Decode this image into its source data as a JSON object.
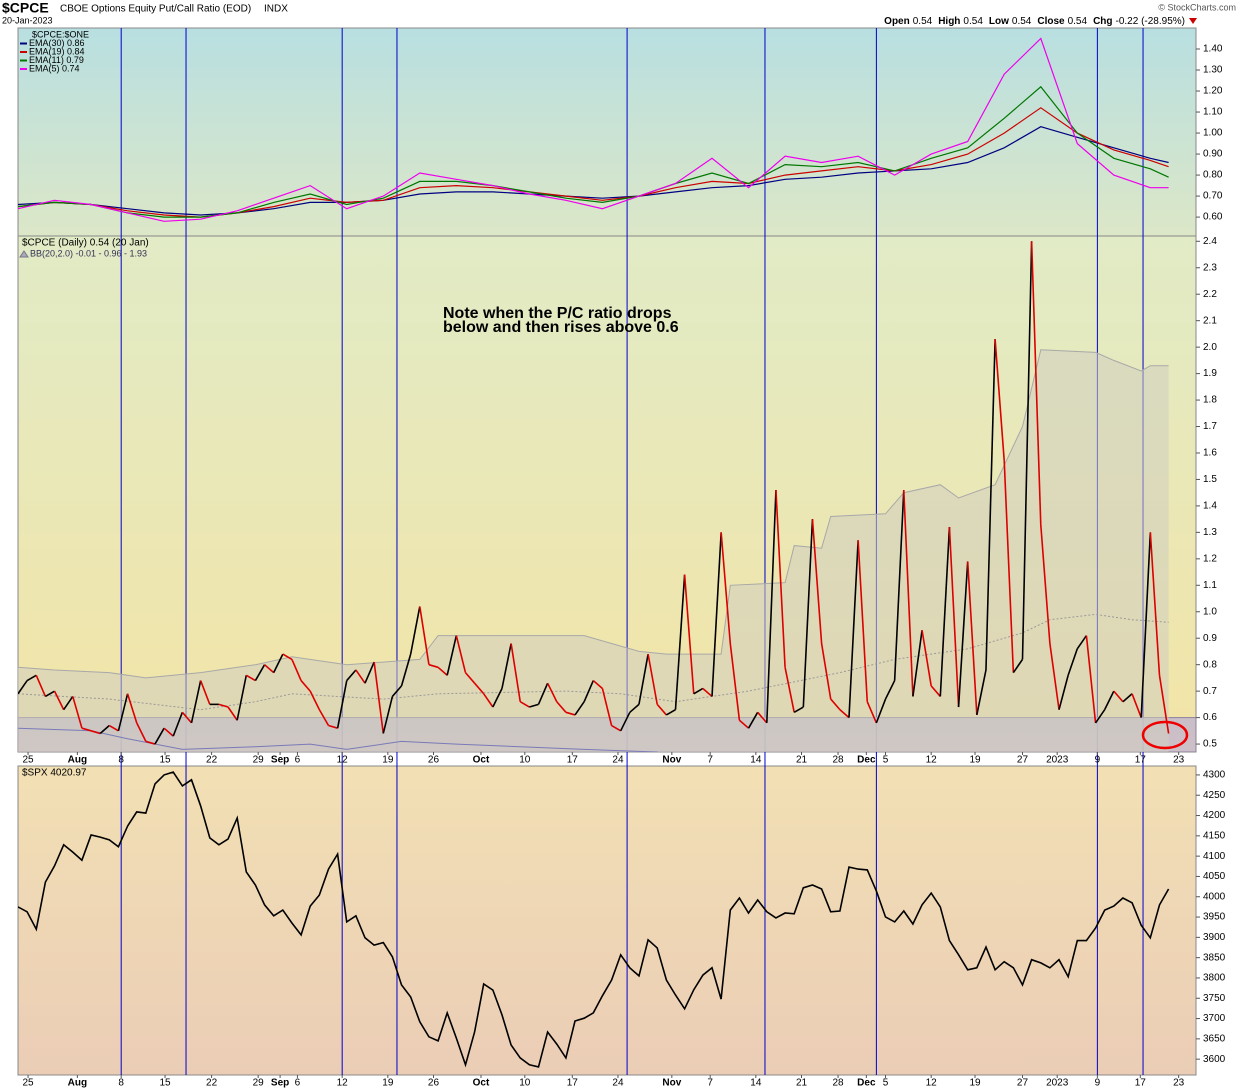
{
  "header": {
    "symbol": "$CPCE",
    "name": "CBOE Options Equity Put/Call Ratio (EOD)",
    "exchange": "INDX",
    "date": "20-Jan-2023",
    "credit": "© StockCharts.com",
    "quote": [
      {
        "label": "Open",
        "value": "0.54"
      },
      {
        "label": "High",
        "value": "0.54"
      },
      {
        "label": "Low",
        "value": "0.54"
      },
      {
        "label": "Close",
        "value": "0.54"
      },
      {
        "label": "Chg",
        "value": "-0.22 (-28.95%)"
      }
    ]
  },
  "vertical_lines": {
    "color": "#0000cc",
    "x": [
      11.3,
      18.4,
      35.5,
      41.5,
      66.7,
      81.8,
      94,
      118.2,
      123.2
    ]
  },
  "chart_data": [
    {
      "type": "line",
      "title": "$CPCE:$ONE",
      "xlim": [
        0,
        129
      ],
      "ylim": [
        0.51,
        1.5
      ],
      "yticks": [
        {
          "value": 0.6,
          "label": "0.60"
        },
        {
          "value": 0.7,
          "label": "0.70"
        },
        {
          "value": 0.8,
          "label": "0.80"
        },
        {
          "value": 0.9,
          "label": "0.90"
        },
        {
          "value": 1.0,
          "label": "1.00"
        },
        {
          "value": 1.1,
          "label": "1.10"
        },
        {
          "value": 1.2,
          "label": "1.20"
        },
        {
          "value": 1.3,
          "label": "1.30"
        },
        {
          "value": 1.4,
          "label": "1.40"
        }
      ],
      "series": [
        {
          "name": "EMA(30) 0.86",
          "color": "#000080",
          "x": [
            0,
            4,
            8,
            12,
            16,
            20,
            24,
            28,
            32,
            36,
            40,
            44,
            48,
            52,
            56,
            60,
            64,
            68,
            72,
            76,
            80,
            84,
            88,
            92,
            96,
            100,
            104,
            108,
            112,
            116,
            120,
            124,
            126
          ],
          "values": [
            0.66,
            0.67,
            0.66,
            0.64,
            0.62,
            0.61,
            0.62,
            0.64,
            0.67,
            0.67,
            0.68,
            0.71,
            0.72,
            0.72,
            0.71,
            0.7,
            0.69,
            0.7,
            0.72,
            0.74,
            0.75,
            0.78,
            0.79,
            0.81,
            0.82,
            0.83,
            0.86,
            0.93,
            1.03,
            0.98,
            0.93,
            0.88,
            0.86
          ]
        },
        {
          "name": "EMA(19) 0.84",
          "color": "#cc0000",
          "x": [
            0,
            4,
            8,
            12,
            16,
            20,
            24,
            28,
            32,
            36,
            40,
            44,
            48,
            52,
            56,
            60,
            64,
            68,
            72,
            76,
            80,
            84,
            88,
            92,
            96,
            100,
            104,
            108,
            112,
            116,
            120,
            124,
            126
          ],
          "values": [
            0.65,
            0.67,
            0.66,
            0.63,
            0.61,
            0.6,
            0.62,
            0.65,
            0.69,
            0.67,
            0.68,
            0.74,
            0.75,
            0.74,
            0.72,
            0.7,
            0.68,
            0.7,
            0.74,
            0.77,
            0.76,
            0.8,
            0.82,
            0.84,
            0.82,
            0.85,
            0.9,
            1.0,
            1.12,
            1.0,
            0.92,
            0.87,
            0.84
          ]
        },
        {
          "name": "EMA(11) 0.79",
          "color": "#007700",
          "x": [
            0,
            4,
            8,
            12,
            16,
            20,
            24,
            28,
            32,
            36,
            40,
            44,
            48,
            52,
            56,
            60,
            64,
            68,
            72,
            76,
            80,
            84,
            88,
            92,
            96,
            100,
            104,
            108,
            112,
            116,
            120,
            124,
            126
          ],
          "values": [
            0.65,
            0.67,
            0.66,
            0.62,
            0.6,
            0.6,
            0.62,
            0.67,
            0.71,
            0.66,
            0.69,
            0.77,
            0.77,
            0.75,
            0.72,
            0.69,
            0.67,
            0.7,
            0.76,
            0.81,
            0.76,
            0.85,
            0.84,
            0.86,
            0.82,
            0.88,
            0.93,
            1.07,
            1.22,
            1.0,
            0.88,
            0.83,
            0.79
          ]
        },
        {
          "name": "EMA(5) 0.74",
          "color": "#ee00ee",
          "x": [
            0,
            4,
            8,
            12,
            16,
            20,
            24,
            28,
            32,
            36,
            40,
            44,
            48,
            52,
            56,
            60,
            64,
            68,
            72,
            76,
            80,
            84,
            88,
            92,
            96,
            100,
            104,
            108,
            112,
            116,
            120,
            124,
            126
          ],
          "values": [
            0.64,
            0.68,
            0.66,
            0.62,
            0.58,
            0.59,
            0.63,
            0.69,
            0.75,
            0.64,
            0.7,
            0.81,
            0.78,
            0.75,
            0.71,
            0.68,
            0.64,
            0.7,
            0.76,
            0.88,
            0.74,
            0.89,
            0.86,
            0.89,
            0.8,
            0.9,
            0.96,
            1.28,
            1.45,
            0.95,
            0.8,
            0.74,
            0.74
          ]
        }
      ]
    },
    {
      "type": "line",
      "xlim": [
        0,
        129
      ],
      "ylim": [
        0.47,
        2.42
      ],
      "yticks": [
        0.5,
        0.6,
        0.7,
        0.8,
        0.9,
        {
          "value": 1.0,
          "label": "1.0"
        },
        1.1,
        1.2,
        1.3,
        1.4,
        1.5,
        1.6,
        1.7,
        1.8,
        1.9,
        {
          "value": 2.0,
          "label": "2.0"
        },
        2.1,
        2.2,
        2.3,
        2.4
      ],
      "zone_top": 0.6,
      "zone_color": "#c4b8cc",
      "annotation": [
        "Note when the P/C ratio drops",
        "below and then rises above 0.6"
      ],
      "bands": {
        "name": "BB(20,2.0) -0.01 - 0.96 - 1.93",
        "fill": "#cfcdbf",
        "upper": {
          "color": "#a8a8a8",
          "x": [
            0,
            4,
            10,
            14,
            20,
            26,
            30,
            36,
            44,
            46,
            62,
            64,
            68,
            71,
            77,
            78,
            84,
            85,
            88,
            89,
            95,
            97,
            101,
            103,
            107,
            110,
            112,
            118,
            120,
            123,
            124,
            126
          ],
          "values": [
            0.79,
            0.78,
            0.77,
            0.75,
            0.77,
            0.8,
            0.83,
            0.8,
            0.82,
            0.91,
            0.91,
            0.89,
            0.85,
            0.84,
            0.84,
            1.1,
            1.11,
            1.25,
            1.24,
            1.36,
            1.37,
            1.45,
            1.48,
            1.43,
            1.48,
            1.7,
            1.99,
            1.98,
            1.95,
            1.91,
            1.93,
            1.93
          ]
        },
        "middle": {
          "color": "#999999",
          "x": [
            0,
            10,
            20,
            26,
            30,
            40,
            46,
            60,
            66,
            72,
            80,
            90,
            96,
            104,
            110,
            113,
            118,
            122,
            126
          ],
          "values": [
            0.69,
            0.67,
            0.63,
            0.66,
            0.69,
            0.67,
            0.69,
            0.7,
            0.69,
            0.66,
            0.7,
            0.77,
            0.82,
            0.86,
            0.92,
            0.97,
            0.99,
            0.97,
            0.96
          ]
        },
        "lower": {
          "color": "#7a7ab8",
          "x": [
            0,
            8,
            12,
            18,
            26,
            32,
            36,
            42,
            48,
            55,
            62,
            70,
            72
          ],
          "values": [
            0.56,
            0.55,
            0.52,
            0.48,
            0.49,
            0.5,
            0.48,
            0.51,
            0.5,
            0.49,
            0.48,
            0.47,
            0.45
          ]
        }
      },
      "series": [
        {
          "name": "$CPCE (Daily) 0.54 (20 Jan)",
          "color": "#000000",
          "up_color": "#000000",
          "down_color": "#dd0000",
          "values": [
            0.69,
            0.74,
            0.76,
            0.68,
            0.7,
            0.63,
            0.68,
            0.56,
            0.55,
            0.54,
            0.57,
            0.55,
            0.69,
            0.58,
            0.51,
            0.5,
            0.56,
            0.53,
            0.62,
            0.58,
            0.74,
            0.65,
            0.65,
            0.64,
            0.59,
            0.76,
            0.74,
            0.8,
            0.77,
            0.84,
            0.82,
            0.74,
            0.7,
            0.63,
            0.57,
            0.56,
            0.74,
            0.78,
            0.73,
            0.81,
            0.54,
            0.68,
            0.72,
            0.84,
            1.02,
            0.8,
            0.79,
            0.76,
            0.91,
            0.77,
            0.73,
            0.69,
            0.64,
            0.71,
            0.88,
            0.66,
            0.64,
            0.65,
            0.73,
            0.66,
            0.62,
            0.61,
            0.66,
            0.74,
            0.71,
            0.57,
            0.55,
            0.62,
            0.65,
            0.84,
            0.65,
            0.61,
            0.63,
            1.14,
            0.69,
            0.71,
            0.68,
            1.3,
            0.88,
            0.59,
            0.56,
            0.62,
            0.58,
            1.46,
            0.79,
            0.62,
            0.64,
            1.35,
            0.88,
            0.67,
            0.63,
            0.6,
            1.27,
            0.66,
            0.58,
            0.67,
            0.74,
            1.46,
            0.68,
            0.93,
            0.72,
            0.68,
            1.32,
            0.64,
            1.19,
            0.61,
            0.78,
            2.03,
            1.57,
            0.77,
            0.82,
            2.4,
            1.33,
            0.88,
            0.63,
            0.76,
            0.86,
            0.91,
            0.58,
            0.63,
            0.7,
            0.66,
            0.69,
            0.6,
            1.3,
            0.76,
            0.54
          ]
        }
      ],
      "xticks": [
        {
          "value": 1.1,
          "label": "25"
        },
        {
          "value": 6.5,
          "label": "Aug"
        },
        {
          "value": 11.3,
          "label": "8"
        },
        {
          "value": 16.1,
          "label": "15"
        },
        {
          "value": 21.2,
          "label": "22"
        },
        {
          "value": 26.3,
          "label": "29"
        },
        {
          "value": 28.7,
          "label": "Sep"
        },
        {
          "value": 30.6,
          "label": "6"
        },
        {
          "value": 35.5,
          "label": "12"
        },
        {
          "value": 40.5,
          "label": "19"
        },
        {
          "value": 45.5,
          "label": "26"
        },
        {
          "value": 50.7,
          "label": "Oct"
        },
        {
          "value": 55.5,
          "label": "10"
        },
        {
          "value": 60.7,
          "label": "17"
        },
        {
          "value": 65.7,
          "label": "24"
        },
        {
          "value": 71.6,
          "label": "Nov"
        },
        {
          "value": 75.8,
          "label": "7"
        },
        {
          "value": 80.8,
          "label": "14"
        },
        {
          "value": 85.8,
          "label": "21"
        },
        {
          "value": 89.8,
          "label": "28"
        },
        {
          "value": 92.9,
          "label": "Dec"
        },
        {
          "value": 95,
          "label": "5"
        },
        {
          "value": 100,
          "label": "12"
        },
        {
          "value": 104.8,
          "label": "19"
        },
        {
          "value": 110,
          "label": "27"
        },
        {
          "value": 113.8,
          "label": "2023"
        },
        {
          "value": 118.2,
          "label": "9"
        },
        {
          "value": 122.9,
          "label": "17"
        },
        {
          "value": 127.1,
          "label": "23"
        }
      ]
    },
    {
      "type": "line",
      "xlim": [
        0,
        129
      ],
      "ylim": [
        3561,
        4322
      ],
      "yticks": [
        3600,
        3650,
        3700,
        3750,
        3800,
        3850,
        3900,
        3950,
        4000,
        4050,
        4100,
        4150,
        4200,
        4250,
        4300
      ],
      "series": [
        {
          "name": "$SPX 4020.97",
          "color": "#000000",
          "values": [
            3975,
            3963,
            3920,
            4036,
            4076,
            4128,
            4110,
            4090,
            4152,
            4147,
            4140,
            4123,
            4174,
            4209,
            4206,
            4278,
            4300,
            4307,
            4273,
            4288,
            4224,
            4145,
            4128,
            4142,
            4194,
            4061,
            4029,
            3980,
            3953,
            3967,
            3935,
            3906,
            3977,
            4004,
            4068,
            4105,
            3938,
            3953,
            3899,
            3881,
            3887,
            3852,
            3783,
            3753,
            3692,
            3655,
            3645,
            3714,
            3652,
            3586,
            3667,
            3785,
            3770,
            3709,
            3635,
            3603,
            3586,
            3581,
            3667,
            3637,
            3603,
            3694,
            3701,
            3714,
            3756,
            3795,
            3857,
            3825,
            3805,
            3894,
            3874,
            3795,
            3758,
            3724,
            3771,
            3807,
            3825,
            3748,
            3967,
            3997,
            3960,
            3992,
            3963,
            3948,
            3960,
            3958,
            4022,
            4029,
            4019,
            3963,
            3965,
            4073,
            4068,
            4066,
            4014,
            3950,
            3938,
            3965,
            3933,
            3980,
            4009,
            3975,
            3892,
            3857,
            3820,
            3825,
            3876,
            3820,
            3840,
            3825,
            3783,
            3845,
            3837,
            3825,
            3845,
            3803,
            3892,
            3892,
            3923,
            3967,
            3977,
            3997,
            3985,
            3930,
            3899,
            3980,
            4019
          ]
        }
      ],
      "xticks": [
        {
          "value": 1.1,
          "label": "25"
        },
        {
          "value": 6.5,
          "label": "Aug"
        },
        {
          "value": 11.3,
          "label": "8"
        },
        {
          "value": 16.1,
          "label": "15"
        },
        {
          "value": 21.2,
          "label": "22"
        },
        {
          "value": 26.3,
          "label": "29"
        },
        {
          "value": 28.7,
          "label": "Sep"
        },
        {
          "value": 30.6,
          "label": "6"
        },
        {
          "value": 35.5,
          "label": "12"
        },
        {
          "value": 40.5,
          "label": "19"
        },
        {
          "value": 45.5,
          "label": "26"
        },
        {
          "value": 50.7,
          "label": "Oct"
        },
        {
          "value": 55.5,
          "label": "10"
        },
        {
          "value": 60.7,
          "label": "17"
        },
        {
          "value": 65.7,
          "label": "24"
        },
        {
          "value": 71.6,
          "label": "Nov"
        },
        {
          "value": 75.8,
          "label": "7"
        },
        {
          "value": 80.8,
          "label": "14"
        },
        {
          "value": 85.8,
          "label": "21"
        },
        {
          "value": 89.8,
          "label": "28"
        },
        {
          "value": 92.9,
          "label": "Dec"
        },
        {
          "value": 95,
          "label": "5"
        },
        {
          "value": 100,
          "label": "12"
        },
        {
          "value": 104.8,
          "label": "19"
        },
        {
          "value": 110,
          "label": "27"
        },
        {
          "value": 113.8,
          "label": "2023"
        },
        {
          "value": 118.2,
          "label": "9"
        },
        {
          "value": 122.9,
          "label": "17"
        },
        {
          "value": 127.1,
          "label": "23"
        }
      ]
    }
  ]
}
